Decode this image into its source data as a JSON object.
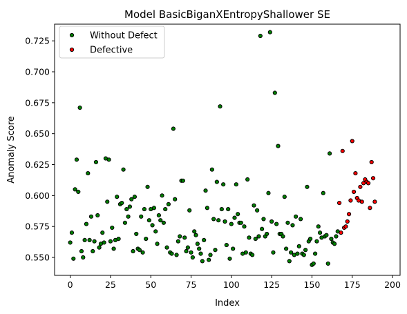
{
  "chart_data": {
    "type": "scatter",
    "title": "Model BasicBiganXEntropyShallower SE",
    "xlabel": "Index",
    "ylabel": "Anomaly Score",
    "xlim": [
      -9.7,
      204.7
    ],
    "ylim": [
      0.5355,
      0.7385
    ],
    "x_ticks": [
      0,
      25,
      50,
      75,
      100,
      125,
      150,
      175,
      200
    ],
    "y_ticks": [
      0.55,
      0.575,
      0.6,
      0.625,
      0.65,
      0.675,
      0.7,
      0.725
    ],
    "x_tick_labels": [
      "0",
      "25",
      "50",
      "75",
      "100",
      "125",
      "150",
      "175",
      "200"
    ],
    "y_tick_labels": [
      "0.550",
      "0.575",
      "0.600",
      "0.625",
      "0.650",
      "0.675",
      "0.700",
      "0.725"
    ],
    "legend": {
      "position": "top-left"
    },
    "grid": false,
    "series": [
      {
        "name": "Without Defect",
        "color": "#008000",
        "edge_color": "#000000",
        "points": [
          [
            0,
            0.562
          ],
          [
            1,
            0.57
          ],
          [
            2,
            0.549
          ],
          [
            3,
            0.605
          ],
          [
            4,
            0.629
          ],
          [
            5,
            0.603
          ],
          [
            6,
            0.671
          ],
          [
            7,
            0.555
          ],
          [
            8,
            0.55
          ],
          [
            9,
            0.564
          ],
          [
            10,
            0.577
          ],
          [
            11,
            0.618
          ],
          [
            12,
            0.564
          ],
          [
            13,
            0.583
          ],
          [
            14,
            0.555
          ],
          [
            15,
            0.563
          ],
          [
            16,
            0.627
          ],
          [
            17,
            0.584
          ],
          [
            18,
            0.558
          ],
          [
            19,
            0.561
          ],
          [
            20,
            0.57
          ],
          [
            21,
            0.562
          ],
          [
            22,
            0.63
          ],
          [
            23,
            0.595
          ],
          [
            24,
            0.629
          ],
          [
            25,
            0.563
          ],
          [
            26,
            0.574
          ],
          [
            27,
            0.557
          ],
          [
            28,
            0.564
          ],
          [
            29,
            0.599
          ],
          [
            30,
            0.565
          ],
          [
            31,
            0.593
          ],
          [
            32,
            0.594
          ],
          [
            33,
            0.621
          ],
          [
            34,
            0.578
          ],
          [
            35,
            0.589
          ],
          [
            36,
            0.583
          ],
          [
            37,
            0.591
          ],
          [
            38,
            0.597
          ],
          [
            39,
            0.555
          ],
          [
            40,
            0.599
          ],
          [
            41,
            0.569
          ],
          [
            42,
            0.557
          ],
          [
            43,
            0.556
          ],
          [
            44,
            0.583
          ],
          [
            45,
            0.554
          ],
          [
            46,
            0.589
          ],
          [
            47,
            0.565
          ],
          [
            48,
            0.607
          ],
          [
            49,
            0.58
          ],
          [
            50,
            0.589
          ],
          [
            51,
            0.576
          ],
          [
            52,
            0.59
          ],
          [
            53,
            0.571
          ],
          [
            54,
            0.561
          ],
          [
            55,
            0.584
          ],
          [
            56,
            0.58
          ],
          [
            57,
            0.6
          ],
          [
            58,
            0.578
          ],
          [
            59,
            0.589
          ],
          [
            60,
            0.558
          ],
          [
            61,
            0.593
          ],
          [
            62,
            0.554
          ],
          [
            63,
            0.553
          ],
          [
            64,
            0.654
          ],
          [
            65,
            0.597
          ],
          [
            66,
            0.552
          ],
          [
            67,
            0.563
          ],
          [
            68,
            0.567
          ],
          [
            69,
            0.612
          ],
          [
            70,
            0.612
          ],
          [
            71,
            0.566
          ],
          [
            72,
            0.555
          ],
          [
            73,
            0.558
          ],
          [
            74,
            0.588
          ],
          [
            75,
            0.554
          ],
          [
            76,
            0.55
          ],
          [
            77,
            0.571
          ],
          [
            78,
            0.568
          ],
          [
            79,
            0.561
          ],
          [
            80,
            0.557
          ],
          [
            81,
            0.553
          ],
          [
            82,
            0.547
          ],
          [
            83,
            0.564
          ],
          [
            84,
            0.604
          ],
          [
            85,
            0.59
          ],
          [
            86,
            0.548
          ],
          [
            87,
            0.552
          ],
          [
            88,
            0.621
          ],
          [
            89,
            0.581
          ],
          [
            90,
            0.556
          ],
          [
            91,
            0.611
          ],
          [
            92,
            0.58
          ],
          [
            93,
            0.672
          ],
          [
            94,
            0.589
          ],
          [
            95,
            0.609
          ],
          [
            96,
            0.579
          ],
          [
            97,
            0.56
          ],
          [
            98,
            0.589
          ],
          [
            99,
            0.549
          ],
          [
            100,
            0.577
          ],
          [
            101,
            0.557
          ],
          [
            102,
            0.582
          ],
          [
            103,
            0.609
          ],
          [
            104,
            0.585
          ],
          [
            105,
            0.578
          ],
          [
            106,
            0.578
          ],
          [
            107,
            0.553
          ],
          [
            108,
            0.575
          ],
          [
            109,
            0.554
          ],
          [
            110,
            0.613
          ],
          [
            111,
            0.566
          ],
          [
            112,
            0.553
          ],
          [
            113,
            0.552
          ],
          [
            114,
            0.592
          ],
          [
            115,
            0.565
          ],
          [
            116,
            0.588
          ],
          [
            117,
            0.567
          ],
          [
            118,
            0.729
          ],
          [
            119,
            0.573
          ],
          [
            120,
            0.581
          ],
          [
            121,
            0.567
          ],
          [
            122,
            0.569
          ],
          [
            123,
            0.602
          ],
          [
            124,
            0.732
          ],
          [
            125,
            0.579
          ],
          [
            126,
            0.554
          ],
          [
            127,
            0.683
          ],
          [
            128,
            0.577
          ],
          [
            129,
            0.64
          ],
          [
            130,
            0.569
          ],
          [
            131,
            0.569
          ],
          [
            132,
            0.567
          ],
          [
            133,
            0.599
          ],
          [
            134,
            0.557
          ],
          [
            135,
            0.578
          ],
          [
            136,
            0.547
          ],
          [
            137,
            0.554
          ],
          [
            138,
            0.576
          ],
          [
            139,
            0.552
          ],
          [
            140,
            0.583
          ],
          [
            141,
            0.553
          ],
          [
            142,
            0.559
          ],
          [
            143,
            0.581
          ],
          [
            144,
            0.553
          ],
          [
            145,
            0.552
          ],
          [
            146,
            0.556
          ],
          [
            147,
            0.607
          ],
          [
            148,
            0.563
          ],
          [
            149,
            0.565
          ],
          [
            150,
            0.544
          ],
          [
            151,
            0.545
          ],
          [
            152,
            0.553
          ],
          [
            153,
            0.563
          ],
          [
            154,
            0.575
          ],
          [
            155,
            0.57
          ],
          [
            156,
            0.566
          ],
          [
            157,
            0.602
          ],
          [
            158,
            0.567
          ],
          [
            159,
            0.568
          ],
          [
            160,
            0.545
          ],
          [
            161,
            0.634
          ],
          [
            162,
            0.565
          ],
          [
            163,
            0.562
          ],
          [
            164,
            0.561
          ],
          [
            165,
            0.567
          ],
          [
            166,
            0.571
          ]
        ]
      },
      {
        "name": "Defective",
        "color": "#ff0000",
        "edge_color": "#000000",
        "points": [
          [
            167,
            0.594
          ],
          [
            168,
            0.57
          ],
          [
            169,
            0.636
          ],
          [
            170,
            0.574
          ],
          [
            171,
            0.575
          ],
          [
            172,
            0.579
          ],
          [
            173,
            0.585
          ],
          [
            174,
            0.596
          ],
          [
            175,
            0.644
          ],
          [
            176,
            0.603
          ],
          [
            177,
            0.618
          ],
          [
            178,
            0.598
          ],
          [
            179,
            0.596
          ],
          [
            180,
            0.607
          ],
          [
            181,
            0.595
          ],
          [
            182,
            0.61
          ],
          [
            183,
            0.613
          ],
          [
            184,
            0.611
          ],
          [
            185,
            0.61
          ],
          [
            186,
            0.59
          ],
          [
            187,
            0.627
          ],
          [
            188,
            0.614
          ],
          [
            189,
            0.595
          ]
        ]
      }
    ]
  }
}
